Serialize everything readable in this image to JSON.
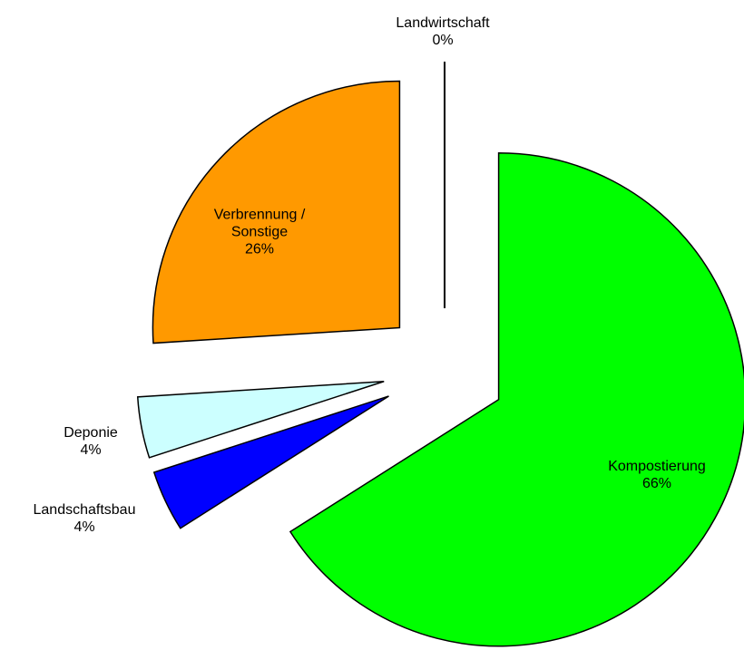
{
  "chart_data": {
    "type": "pie",
    "exploded": true,
    "categories": [
      "Kompostierung",
      "Landschaftsbau",
      "Deponie",
      "Verbrennung / Sonstige",
      "Landwirtschaft"
    ],
    "values": [
      66,
      4,
      4,
      26,
      0
    ],
    "value_labels": [
      "66%",
      "4%",
      "4%",
      "26%",
      "0%"
    ],
    "colors": [
      "#00ff00",
      "#0000ff",
      "#ccffff",
      "#ff9900",
      "#ff0000"
    ]
  }
}
